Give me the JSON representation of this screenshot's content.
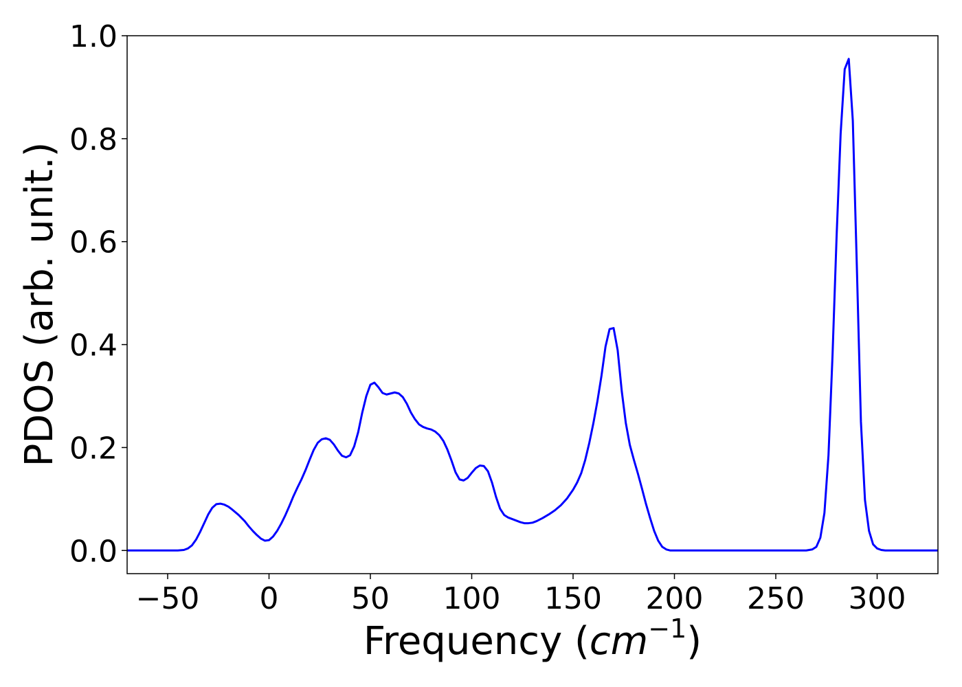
{
  "chart_data": {
    "type": "line",
    "title": "",
    "xlabel": "Frequency",
    "xlabel_unit_base": "cm",
    "xlabel_unit_exp": "−1",
    "ylabel": "PDOS (arb. unit.)",
    "xlim": [
      -70,
      330
    ],
    "ylim": [
      -0.045,
      1.0
    ],
    "x_ticks": [
      -50,
      0,
      50,
      100,
      150,
      200,
      250,
      300
    ],
    "x_tick_labels": [
      "−50",
      "0",
      "50",
      "100",
      "150",
      "200",
      "250",
      "300"
    ],
    "y_ticks": [
      0.0,
      0.2,
      0.4,
      0.6,
      0.8,
      1.0
    ],
    "y_tick_labels": [
      "0.0",
      "0.2",
      "0.4",
      "0.6",
      "0.8",
      "1.0"
    ],
    "grid": false,
    "legend": "none",
    "series_color": "#0000ff",
    "series": [
      {
        "x": [
          -70,
          -60,
          -50,
          -45,
          -42,
          -40,
          -38,
          -36,
          -34,
          -32,
          -30,
          -28,
          -26,
          -24,
          -22,
          -20,
          -18,
          -15,
          -12,
          -10,
          -8,
          -6,
          -4,
          -2,
          0,
          2,
          4,
          6,
          8,
          10,
          12,
          14,
          16,
          18,
          20,
          22,
          24,
          26,
          28,
          30,
          32,
          34,
          36,
          38,
          40,
          42,
          44,
          46,
          48,
          50,
          52,
          54,
          56,
          58,
          60,
          62,
          64,
          66,
          68,
          70,
          72,
          74,
          76,
          78,
          80,
          82,
          84,
          86,
          88,
          90,
          92,
          94,
          96,
          98,
          100,
          102,
          104,
          106,
          108,
          110,
          112,
          114,
          116,
          118,
          120,
          122,
          124,
          126,
          128,
          130,
          132,
          135,
          138,
          141,
          144,
          147,
          150,
          152,
          154,
          156,
          158,
          160,
          162,
          164,
          166,
          168,
          170,
          172,
          174,
          176,
          178,
          180,
          182,
          184,
          186,
          188,
          190,
          192,
          194,
          196,
          198,
          200,
          205,
          210,
          220,
          240,
          260,
          265,
          268,
          270,
          272,
          274,
          276,
          278,
          280,
          282,
          284,
          286,
          288,
          290,
          292,
          294,
          296,
          298,
          300,
          302,
          304,
          306,
          310,
          320,
          330
        ],
        "y": [
          0,
          0,
          0,
          0,
          0.001,
          0.004,
          0.01,
          0.021,
          0.036,
          0.053,
          0.07,
          0.083,
          0.09,
          0.091,
          0.089,
          0.085,
          0.079,
          0.069,
          0.057,
          0.047,
          0.038,
          0.03,
          0.023,
          0.019,
          0.02,
          0.027,
          0.038,
          0.052,
          0.068,
          0.086,
          0.105,
          0.122,
          0.138,
          0.156,
          0.176,
          0.195,
          0.209,
          0.216,
          0.218,
          0.215,
          0.206,
          0.194,
          0.184,
          0.181,
          0.185,
          0.202,
          0.23,
          0.268,
          0.3,
          0.322,
          0.326,
          0.317,
          0.306,
          0.303,
          0.305,
          0.307,
          0.305,
          0.298,
          0.285,
          0.268,
          0.255,
          0.245,
          0.24,
          0.237,
          0.235,
          0.231,
          0.224,
          0.213,
          0.196,
          0.175,
          0.152,
          0.138,
          0.136,
          0.141,
          0.151,
          0.16,
          0.165,
          0.164,
          0.154,
          0.132,
          0.104,
          0.081,
          0.069,
          0.064,
          0.061,
          0.058,
          0.055,
          0.053,
          0.053,
          0.054,
          0.057,
          0.063,
          0.07,
          0.078,
          0.088,
          0.101,
          0.118,
          0.132,
          0.15,
          0.176,
          0.209,
          0.247,
          0.29,
          0.339,
          0.396,
          0.43,
          0.432,
          0.389,
          0.31,
          0.248,
          0.205,
          0.176,
          0.149,
          0.12,
          0.09,
          0.063,
          0.038,
          0.019,
          0.007,
          0.002,
          0,
          0,
          0,
          0,
          0,
          0,
          0,
          0,
          0.002,
          0.007,
          0.025,
          0.073,
          0.185,
          0.38,
          0.61,
          0.81,
          0.935,
          0.955,
          0.835,
          0.55,
          0.25,
          0.098,
          0.038,
          0.012,
          0.004,
          0.001,
          0,
          0,
          0,
          0,
          0
        ]
      }
    ]
  }
}
